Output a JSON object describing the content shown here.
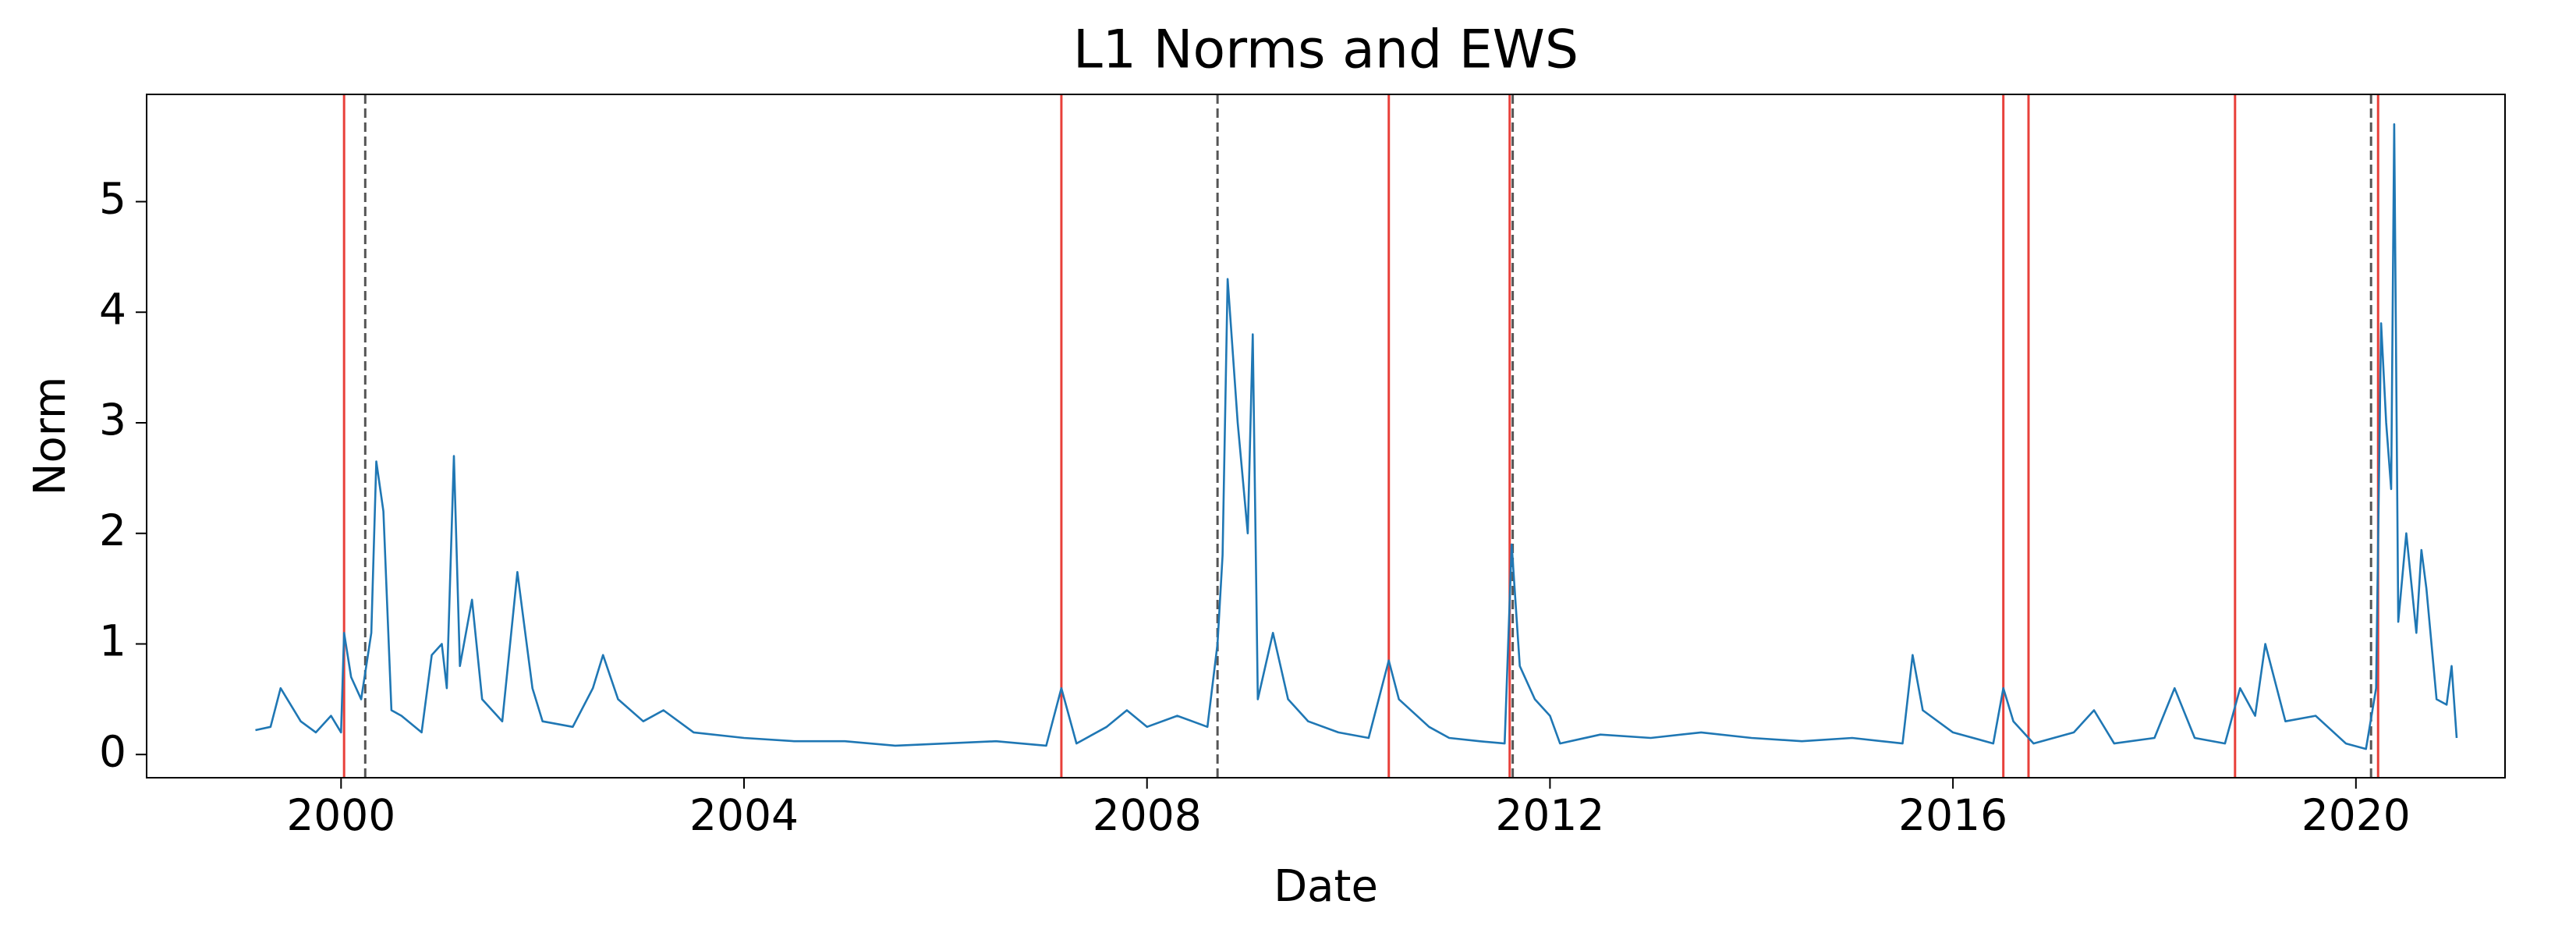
{
  "chart_data": {
    "type": "line",
    "title": "L1 Norms and EWS",
    "x_label": "Date",
    "y_label": "Norm",
    "xlim": [
      1998.07,
      2021.48
    ],
    "ylim": [
      -0.21,
      5.97
    ],
    "xticks": [
      2000,
      2004,
      2008,
      2012,
      2016,
      2020
    ],
    "yticks": [
      0,
      1,
      2,
      3,
      4,
      5
    ],
    "series": [
      {
        "color": "#1f77b4",
        "x": [
          1999.15,
          1999.3,
          1999.4,
          1999.5,
          1999.6,
          1999.75,
          1999.9,
          2000.0,
          2000.03,
          2000.1,
          2000.2,
          2000.3,
          2000.35,
          2000.42,
          2000.5,
          2000.6,
          2000.8,
          2000.9,
          2001.0,
          2001.05,
          2001.12,
          2001.18,
          2001.3,
          2001.4,
          2001.6,
          2001.75,
          2001.8,
          2001.9,
          2002.0,
          2002.3,
          2002.5,
          2002.6,
          2002.75,
          2003.0,
          2003.2,
          2003.5,
          2004.0,
          2004.5,
          2005.0,
          2005.5,
          2006.0,
          2006.5,
          2007.0,
          2007.15,
          2007.3,
          2007.6,
          2007.8,
          2008.0,
          2008.3,
          2008.6,
          2008.7,
          2008.75,
          2008.8,
          2008.9,
          2009.0,
          2009.05,
          2009.1,
          2009.25,
          2009.4,
          2009.6,
          2009.9,
          2010.2,
          2010.4,
          2010.5,
          2010.8,
          2011.0,
          2011.3,
          2011.55,
          2011.62,
          2011.7,
          2011.85,
          2012.0,
          2012.1,
          2012.5,
          2013.0,
          2013.5,
          2014.0,
          2014.5,
          2015.0,
          2015.5,
          2015.6,
          2015.7,
          2016.0,
          2016.4,
          2016.5,
          2016.6,
          2016.8,
          2017.2,
          2017.4,
          2017.6,
          2018.0,
          2018.2,
          2018.4,
          2018.7,
          2018.85,
          2019.0,
          2019.1,
          2019.3,
          2019.6,
          2019.9,
          2020.1,
          2020.2,
          2020.25,
          2020.3,
          2020.35,
          2020.38,
          2020.42,
          2020.5,
          2020.6,
          2020.65,
          2020.7,
          2020.8,
          2020.9,
          2020.95,
          2021.0
        ],
        "values": [
          0.22,
          0.25,
          0.6,
          0.45,
          0.3,
          0.2,
          0.35,
          0.2,
          1.1,
          0.7,
          0.5,
          1.1,
          2.65,
          2.2,
          0.4,
          0.35,
          0.2,
          0.9,
          1.0,
          0.6,
          2.7,
          0.8,
          1.4,
          0.5,
          0.3,
          1.65,
          1.3,
          0.6,
          0.3,
          0.25,
          0.6,
          0.9,
          0.5,
          0.3,
          0.4,
          0.2,
          0.15,
          0.12,
          0.12,
          0.08,
          0.1,
          0.12,
          0.08,
          0.6,
          0.1,
          0.25,
          0.4,
          0.25,
          0.35,
          0.25,
          1.0,
          1.8,
          4.3,
          3.0,
          2.0,
          3.8,
          0.5,
          1.1,
          0.5,
          0.3,
          0.2,
          0.15,
          0.85,
          0.5,
          0.25,
          0.15,
          0.12,
          0.1,
          1.9,
          0.8,
          0.5,
          0.35,
          0.1,
          0.18,
          0.15,
          0.2,
          0.15,
          0.12,
          0.15,
          0.1,
          0.9,
          0.4,
          0.2,
          0.1,
          0.6,
          0.3,
          0.1,
          0.2,
          0.4,
          0.1,
          0.15,
          0.6,
          0.15,
          0.1,
          0.6,
          0.35,
          1.0,
          0.3,
          0.35,
          0.1,
          0.05,
          0.6,
          3.9,
          3.0,
          2.4,
          5.7,
          1.2,
          2.0,
          1.1,
          1.85,
          1.5,
          0.5,
          0.45,
          0.8,
          0.15
        ]
      }
    ],
    "vlines": [
      {
        "color": "#e8403a",
        "dashed": false,
        "x": [
          2000.03,
          2007.15,
          2010.4,
          2011.6,
          2016.5,
          2016.75,
          2018.8,
          2020.22
        ]
      },
      {
        "color": "#555555",
        "dashed": true,
        "x": [
          2000.24,
          2008.7,
          2011.63,
          2020.15
        ]
      }
    ]
  }
}
